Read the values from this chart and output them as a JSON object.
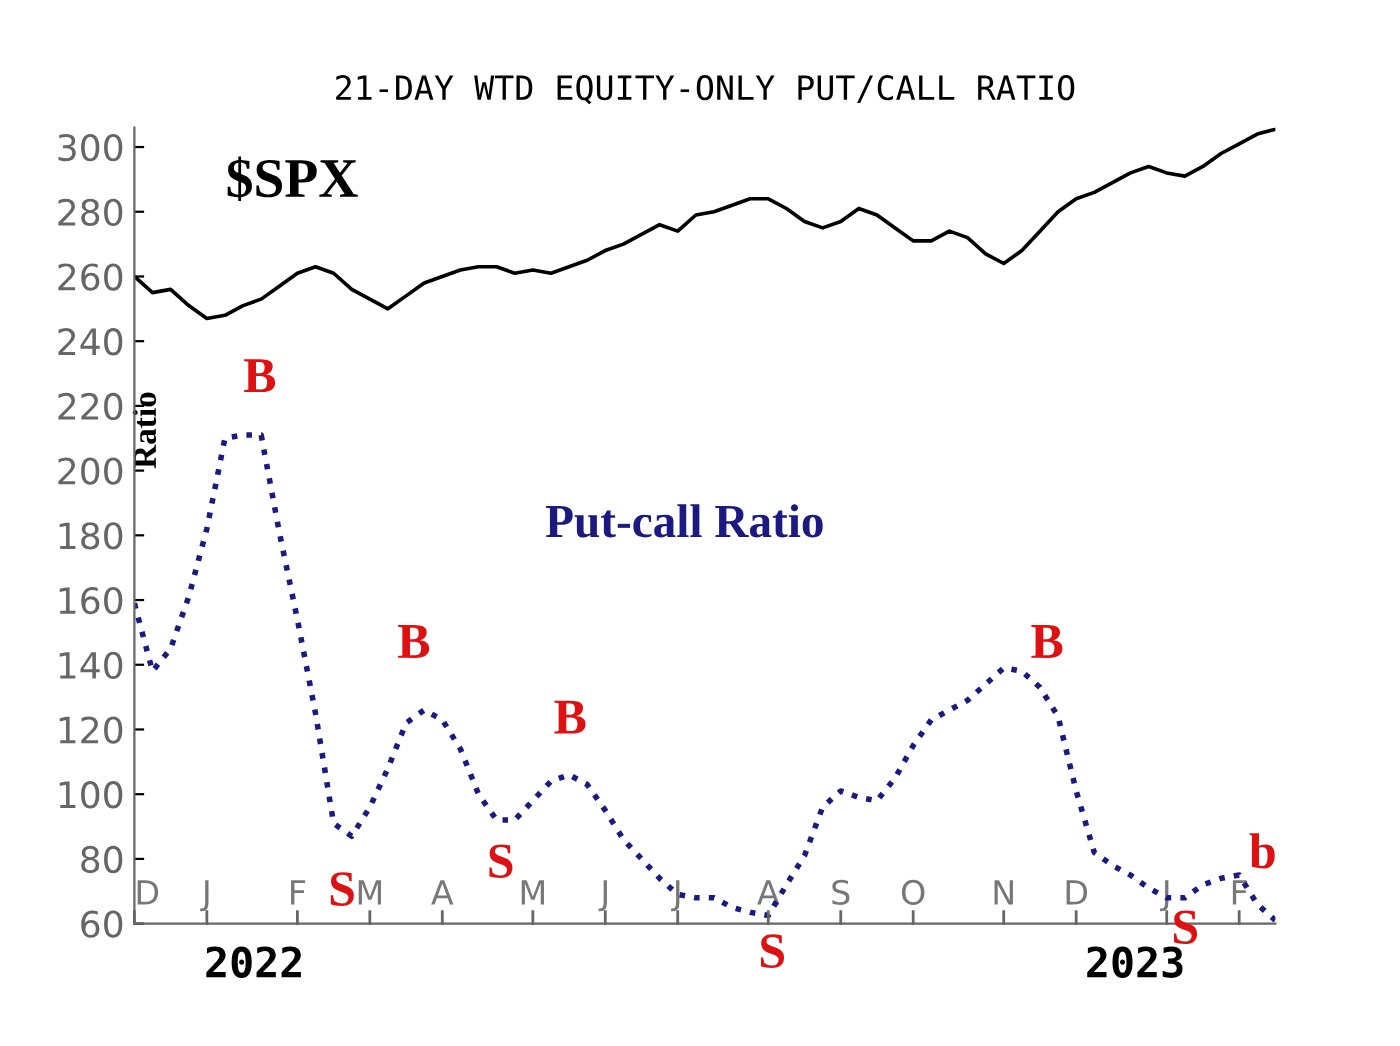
{
  "chart_data": {
    "type": "line",
    "title": "21-DAY WTD EQUITY-ONLY PUT/CALL RATIO",
    "ylabel": "Ratio",
    "categories": [
      "D",
      null,
      null,
      null,
      "J",
      null,
      null,
      null,
      null,
      "F",
      null,
      null,
      null,
      "M",
      null,
      null,
      null,
      "A",
      null,
      null,
      null,
      null,
      "M",
      null,
      null,
      null,
      "J",
      null,
      null,
      null,
      "J",
      null,
      null,
      null,
      null,
      "A",
      null,
      null,
      null,
      "S",
      null,
      null,
      null,
      "O",
      null,
      null,
      null,
      null,
      "N",
      null,
      null,
      null,
      "D",
      null,
      null,
      null,
      null,
      "J",
      null,
      null,
      null,
      "F",
      null,
      null
    ],
    "series": [
      {
        "name": "$SPX",
        "color": "#000000",
        "line_style": "solid",
        "values": [
          260,
          255,
          256,
          251,
          247,
          248,
          251,
          253,
          257,
          261,
          263,
          261,
          256,
          253,
          250,
          254,
          258,
          260,
          262,
          263,
          263,
          261,
          262,
          261,
          263,
          265,
          268,
          270,
          273,
          276,
          274,
          279,
          280,
          282,
          284,
          284,
          281,
          277,
          275,
          277,
          281,
          279,
          275,
          271,
          271,
          274,
          272,
          267,
          264,
          268,
          274,
          280,
          284,
          286,
          289,
          292,
          294,
          292,
          291,
          294,
          298,
          301,
          304,
          305.5
        ]
      },
      {
        "name": "Put-call Ratio",
        "color": "#1a1a80",
        "line_style": "dotted",
        "values": [
          159,
          138,
          145,
          161,
          182,
          210,
          211,
          211,
          181,
          154,
          125,
          91,
          87,
          96,
          108,
          122,
          126,
          123,
          114,
          100,
          92,
          92,
          98,
          104,
          106,
          103,
          95,
          86,
          80,
          74,
          69,
          68,
          68,
          65,
          63.5,
          62.5,
          72,
          81,
          96,
          101,
          99,
          98,
          105,
          115,
          123,
          126,
          129,
          134,
          139,
          138,
          133,
          124,
          101,
          82,
          78,
          75,
          71,
          68,
          68,
          72,
          74,
          75,
          66,
          61
        ]
      }
    ],
    "ylim": [
      60,
      306
    ],
    "yticks": [
      60,
      80,
      100,
      120,
      140,
      160,
      180,
      200,
      220,
      240,
      260,
      280,
      300
    ],
    "grid": false,
    "annotations": [
      "2022",
      "2023",
      "B",
      "S",
      "B",
      "S",
      "B",
      "S",
      "B",
      "S",
      "b"
    ]
  }
}
